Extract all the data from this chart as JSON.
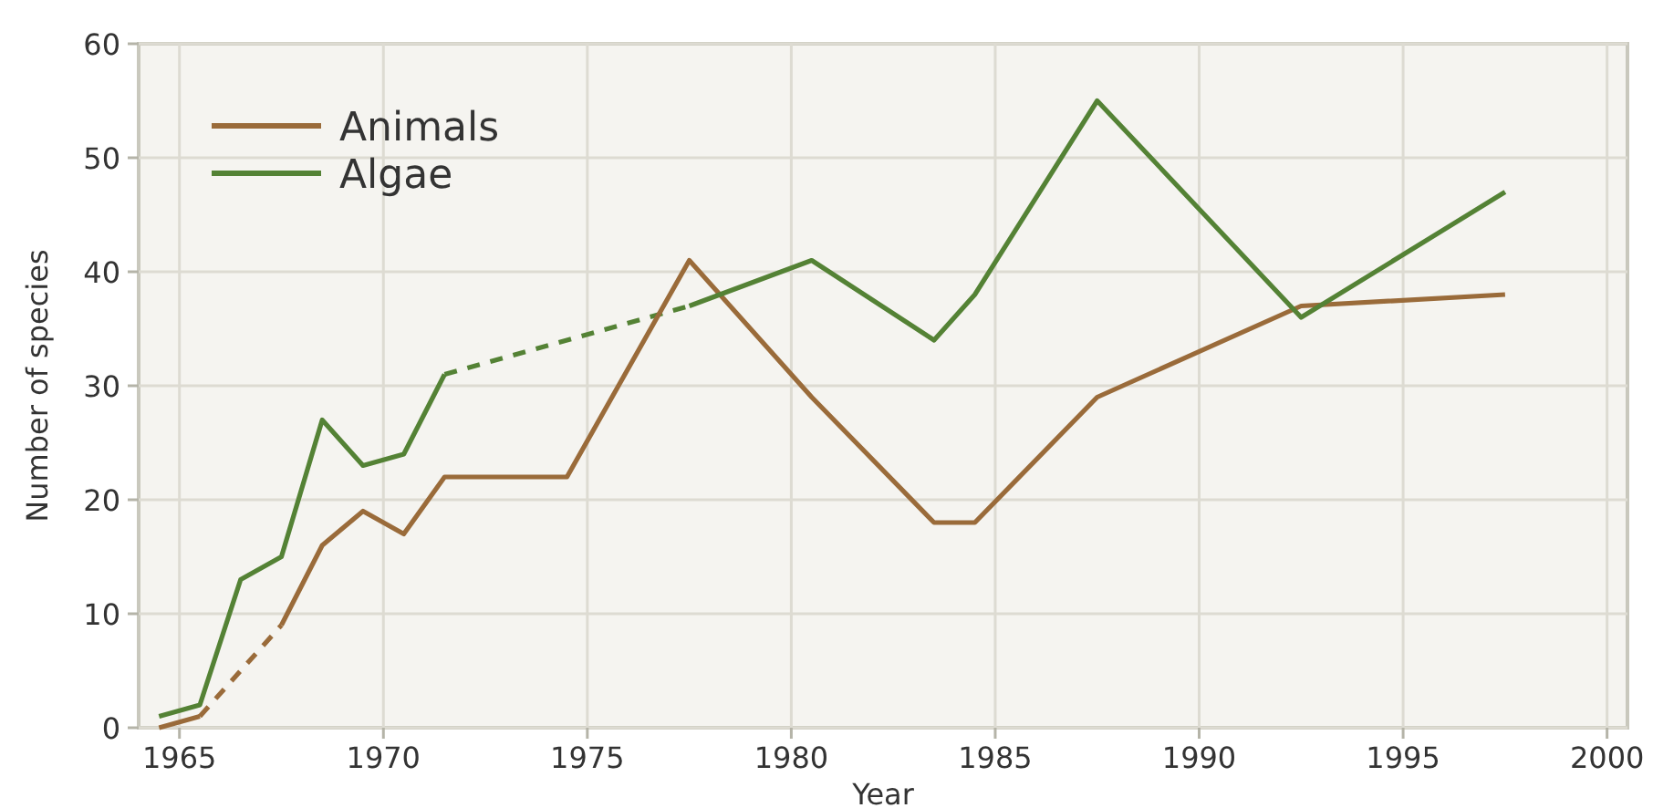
{
  "chart_data": {
    "type": "line",
    "xlabel": "Year",
    "ylabel": "Number of species",
    "xlim": [
      1964,
      2000.5
    ],
    "xticks": [
      1965,
      1970,
      1975,
      1980,
      1985,
      1990,
      1995,
      2000
    ],
    "ylim": [
      0,
      60
    ],
    "yticks": [
      0,
      10,
      20,
      30,
      40,
      50,
      60
    ],
    "grid": true,
    "legend": "top left",
    "line_style": "solid",
    "marker": "none",
    "series": [
      {
        "color": "#9a6b3a",
        "line_style": "dashed",
        "x": [
          1965.5,
          1967.5
        ],
        "values": [
          1,
          9
        ]
      },
      {
        "color": "#548235",
        "line_style": "dashed",
        "x": [
          1971.5,
          1977.5
        ],
        "values": [
          31,
          37
        ]
      },
      {
        "name": "Animals",
        "color": "#9a6b3a",
        "x": [
          1964.5,
          1965.5,
          1966.5,
          1967.5,
          1968.5,
          1969.5,
          1970.5,
          1971.5,
          1974.5,
          1977.5,
          1980.5,
          1983.5,
          1984.5,
          1987.5,
          1992.5,
          1997.5
        ],
        "values": [
          0,
          1,
          null,
          9,
          16,
          19,
          17,
          22,
          22,
          41,
          29,
          18,
          18,
          29,
          37,
          38
        ]
      },
      {
        "name": "Algae",
        "color": "#548235",
        "x": [
          1964.5,
          1965.5,
          1966.5,
          1967.5,
          1968.5,
          1969.5,
          1970.5,
          1971.5,
          1974.5,
          1977.5,
          1980.5,
          1983.5,
          1984.5,
          1987.5,
          1992.5,
          1997.5
        ],
        "values": [
          1,
          2,
          13,
          15,
          27,
          23,
          24,
          31,
          null,
          37,
          41,
          34,
          38,
          55,
          36,
          47
        ]
      }
    ]
  }
}
